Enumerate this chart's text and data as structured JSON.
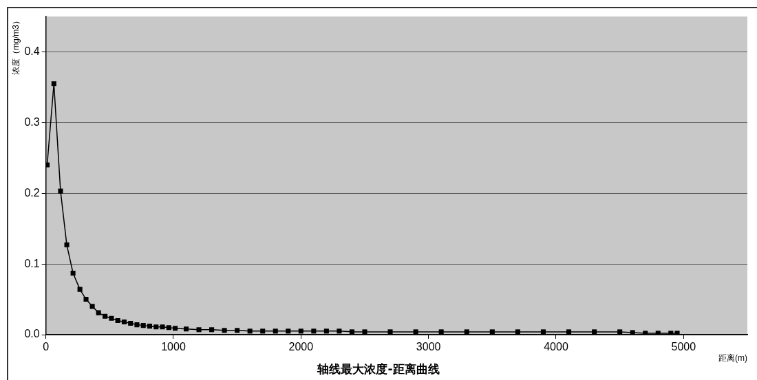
{
  "chart_data": {
    "type": "line",
    "title": "轴线最大浓度-距离曲线",
    "xlabel": "距离(m)",
    "ylabel": "浓度（mg/m3）",
    "x": [
      10,
      63,
      115,
      164,
      213,
      267,
      315,
      364,
      413,
      464,
      514,
      564,
      614,
      664,
      714,
      764,
      814,
      864,
      914,
      964,
      1014,
      1100,
      1200,
      1300,
      1400,
      1500,
      1600,
      1700,
      1800,
      1900,
      2000,
      2100,
      2200,
      2300,
      2400,
      2500,
      2700,
      2900,
      3100,
      3300,
      3500,
      3700,
      3900,
      4100,
      4300,
      4500,
      4600,
      4700,
      4800,
      4900,
      4950
    ],
    "series": [
      {
        "color": "#000000",
        "values": [
          0.24,
          0.355,
          0.203,
          0.127,
          0.087,
          0.064,
          0.05,
          0.04,
          0.031,
          0.026,
          0.023,
          0.02,
          0.018,
          0.016,
          0.014,
          0.013,
          0.012,
          0.011,
          0.011,
          0.01,
          0.009,
          0.008,
          0.007,
          0.007,
          0.006,
          0.006,
          0.005,
          0.005,
          0.005,
          0.005,
          0.005,
          0.005,
          0.005,
          0.005,
          0.004,
          0.004,
          0.004,
          0.004,
          0.004,
          0.004,
          0.004,
          0.004,
          0.004,
          0.004,
          0.004,
          0.004,
          0.003,
          0.002,
          0.002,
          0.002,
          0.002
        ]
      }
    ],
    "xlim": [
      0,
      5500
    ],
    "xticks": [
      0,
      1000,
      2000,
      3000,
      4000,
      5000
    ],
    "ylim": [
      0,
      0.45
    ],
    "yticks": [
      {
        "value": 0,
        "label": "0.0"
      },
      0.1,
      0.2,
      0.3,
      0.4
    ],
    "grid": "y",
    "legend": false,
    "marker": "square",
    "line_style": "solid"
  }
}
